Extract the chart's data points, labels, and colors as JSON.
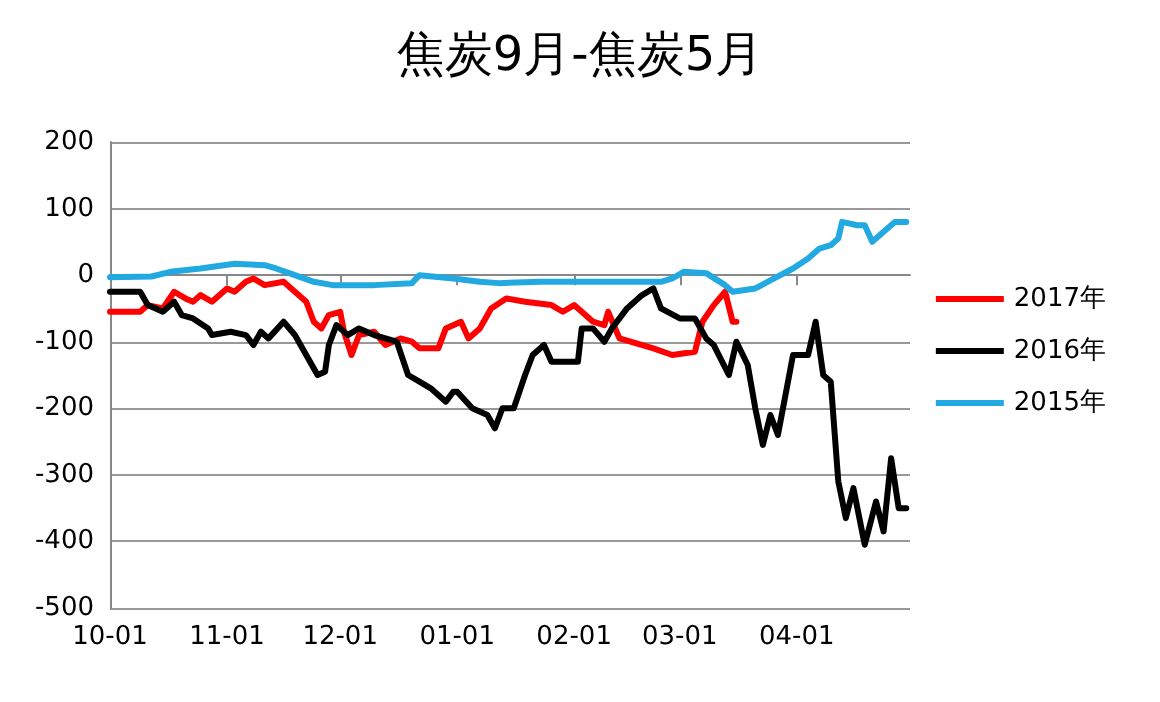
{
  "chart_data": {
    "type": "line",
    "title": "焦炭9月-焦炭5月",
    "xlim": [
      "2016-10-01",
      "2017-05-01"
    ],
    "xticks": [
      {
        "value": "2016-10-01",
        "label": "10-01"
      },
      {
        "value": "2016-11-01",
        "label": "11-01"
      },
      {
        "value": "2016-12-01",
        "label": "12-01"
      },
      {
        "value": "2017-01-01",
        "label": "01-01"
      },
      {
        "value": "2017-02-01",
        "label": "02-01"
      },
      {
        "value": "2017-03-01",
        "label": "03-01"
      },
      {
        "value": "2017-04-01",
        "label": "04-01"
      }
    ],
    "ylim": [
      -500,
      200
    ],
    "yticks": [
      -500,
      -400,
      -300,
      -200,
      -100,
      0,
      100,
      200
    ],
    "grid": "y",
    "legend": "right",
    "marker": "none",
    "line_style": "solid",
    "series": [
      {
        "name": "2017年",
        "color": "#ff0000",
        "x": [
          "2016-10-01",
          "2016-10-09",
          "2016-10-11",
          "2016-10-15",
          "2016-10-18",
          "2016-10-21",
          "2016-10-23",
          "2016-10-25",
          "2016-10-28",
          "2016-11-01",
          "2016-11-03",
          "2016-11-06",
          "2016-11-08",
          "2016-11-11",
          "2016-11-16",
          "2016-11-19",
          "2016-11-22",
          "2016-11-24",
          "2016-11-26",
          "2016-11-28",
          "2016-12-01",
          "2016-12-02",
          "2016-12-04",
          "2016-12-06",
          "2016-12-10",
          "2016-12-13",
          "2016-12-17",
          "2016-12-20",
          "2016-12-22",
          "2016-12-27",
          "2016-12-29",
          "2017-01-02",
          "2017-01-04",
          "2017-01-07",
          "2017-01-10",
          "2017-01-14",
          "2017-01-19",
          "2017-01-26",
          "2017-01-29",
          "2017-02-01",
          "2017-02-04",
          "2017-02-06",
          "2017-02-09",
          "2017-02-10",
          "2017-02-13",
          "2017-02-22",
          "2017-02-27",
          "2017-03-05",
          "2017-03-07",
          "2017-03-10",
          "2017-03-13",
          "2017-03-15",
          "2017-03-16"
        ],
        "values": [
          -55,
          -55,
          -45,
          -50,
          -25,
          -35,
          -40,
          -30,
          -40,
          -20,
          -25,
          -10,
          -5,
          -15,
          -10,
          -25,
          -40,
          -70,
          -80,
          -60,
          -55,
          -85,
          -120,
          -90,
          -85,
          -105,
          -95,
          -100,
          -110,
          -110,
          -80,
          -70,
          -95,
          -80,
          -50,
          -35,
          -40,
          -45,
          -55,
          -45,
          -60,
          -70,
          -75,
          -55,
          -95,
          -110,
          -120,
          -115,
          -70,
          -45,
          -25,
          -70,
          -70
        ]
      },
      {
        "name": "2016年",
        "color": "#000000",
        "x": [
          "2016-10-01",
          "2016-10-09",
          "2016-10-11",
          "2016-10-15",
          "2016-10-18",
          "2016-10-20",
          "2016-10-23",
          "2016-10-27",
          "2016-10-28",
          "2016-11-02",
          "2016-11-06",
          "2016-11-08",
          "2016-11-10",
          "2016-11-12",
          "2016-11-16",
          "2016-11-19",
          "2016-11-22",
          "2016-11-25",
          "2016-11-27",
          "2016-11-28",
          "2016-11-30",
          "2016-12-03",
          "2016-12-06",
          "2016-12-10",
          "2016-12-16",
          "2016-12-19",
          "2016-12-22",
          "2016-12-25",
          "2016-12-29",
          "2016-12-31",
          "2017-01-01",
          "2017-01-05",
          "2017-01-09",
          "2017-01-11",
          "2017-01-13",
          "2017-01-16",
          "2017-01-19",
          "2017-01-21",
          "2017-01-24",
          "2017-01-26",
          "2017-02-02",
          "2017-02-03",
          "2017-02-06",
          "2017-02-09",
          "2017-02-11",
          "2017-02-15",
          "2017-02-19",
          "2017-02-22",
          "2017-02-24",
          "2017-03-01",
          "2017-03-05",
          "2017-03-08",
          "2017-03-10",
          "2017-03-14",
          "2017-03-16",
          "2017-03-19",
          "2017-03-21",
          "2017-03-23",
          "2017-03-25",
          "2017-03-27",
          "2017-03-29",
          "2017-03-31",
          "2017-04-04",
          "2017-04-06",
          "2017-04-08",
          "2017-04-10",
          "2017-04-12",
          "2017-04-14",
          "2017-04-16",
          "2017-04-19",
          "2017-04-22",
          "2017-04-24",
          "2017-04-26",
          "2017-04-28",
          "2017-04-30"
        ],
        "values": [
          -25,
          -25,
          -45,
          -55,
          -40,
          -60,
          -65,
          -80,
          -90,
          -85,
          -90,
          -105,
          -85,
          -95,
          -70,
          -90,
          -120,
          -150,
          -145,
          -105,
          -75,
          -90,
          -80,
          -90,
          -100,
          -150,
          -160,
          -170,
          -190,
          -175,
          -175,
          -200,
          -210,
          -230,
          -200,
          -200,
          -150,
          -120,
          -105,
          -130,
          -130,
          -80,
          -80,
          -100,
          -80,
          -50,
          -30,
          -20,
          -50,
          -65,
          -65,
          -95,
          -105,
          -150,
          -100,
          -135,
          -200,
          -255,
          -210,
          -240,
          -180,
          -120,
          -120,
          -70,
          -150,
          -160,
          -310,
          -365,
          -320,
          -405,
          -340,
          -385,
          -275,
          -350,
          -350
        ]
      },
      {
        "name": "2015年",
        "color": "#22a9e1",
        "x": [
          "2016-10-01",
          "2016-10-12",
          "2016-10-17",
          "2016-10-25",
          "2016-11-03",
          "2016-11-11",
          "2016-11-14",
          "2016-11-19",
          "2016-11-24",
          "2016-11-29",
          "2016-12-10",
          "2016-12-20",
          "2016-12-22",
          "2016-12-31",
          "2017-01-07",
          "2017-01-12",
          "2017-01-23",
          "2017-02-24",
          "2017-02-27",
          "2017-03-02",
          "2017-03-08",
          "2017-03-13",
          "2017-03-15",
          "2017-03-21",
          "2017-03-26",
          "2017-03-31",
          "2017-04-04",
          "2017-04-07",
          "2017-04-10",
          "2017-04-12",
          "2017-04-13",
          "2017-04-17",
          "2017-04-19",
          "2017-04-21",
          "2017-04-24",
          "2017-04-27",
          "2017-04-30"
        ],
        "values": [
          -3,
          -2,
          5,
          10,
          17,
          15,
          10,
          0,
          -10,
          -15,
          -15,
          -12,
          0,
          -5,
          -10,
          -12,
          -10,
          -10,
          -5,
          5,
          3,
          -15,
          -25,
          -20,
          -5,
          10,
          25,
          40,
          45,
          55,
          80,
          75,
          75,
          50,
          65,
          80,
          80
        ]
      }
    ]
  }
}
